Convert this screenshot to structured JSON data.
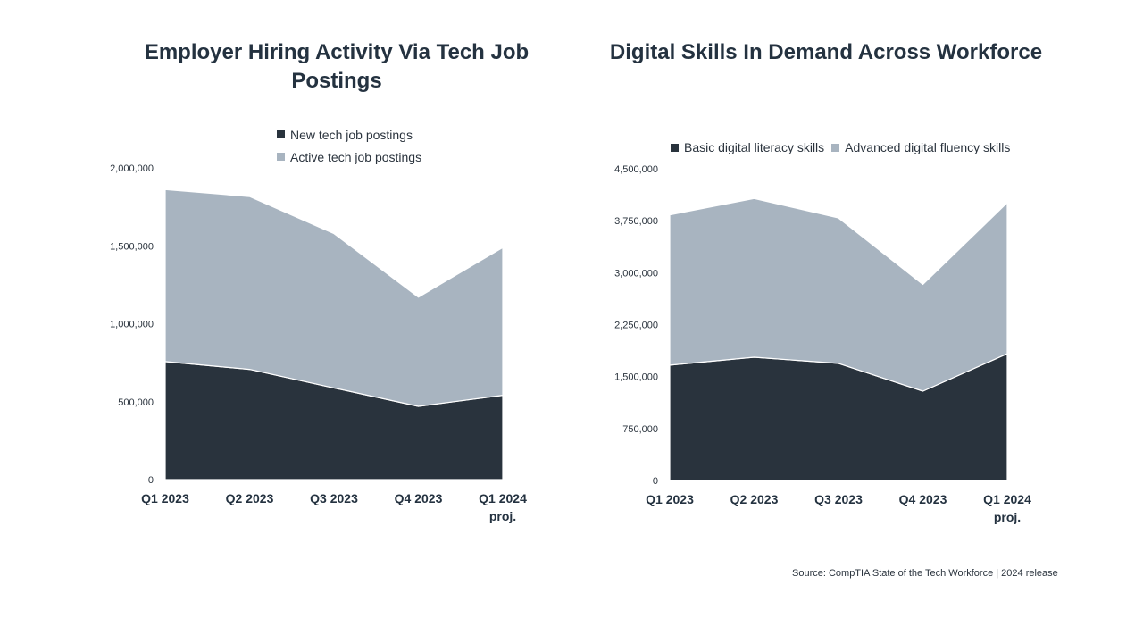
{
  "colors": {
    "dark": "#29333d",
    "light": "#a8b4c0",
    "title": "#243240",
    "text": "#2a333d"
  },
  "chart_data": [
    {
      "type": "area",
      "stacked": true,
      "title": "Employer Hiring Activity Via Tech Job Postings",
      "categories": [
        "Q1 2023",
        "Q2 2023",
        "Q3 2023",
        "Q4 2023",
        "Q1 2024"
      ],
      "category_sublabels": [
        "",
        "",
        "",
        "",
        "proj."
      ],
      "series": [
        {
          "name": "New tech job postings",
          "color": "#29333d",
          "values": [
            757000,
            707000,
            588000,
            470000,
            541000
          ]
        },
        {
          "name": "Active tech job postings",
          "color": "#a8b4c0",
          "values": [
            1104000,
            1109000,
            990000,
            700000,
            948000
          ]
        }
      ],
      "ylim": [
        0,
        2000000
      ],
      "yticks": [
        0,
        500000,
        1000000,
        1500000,
        2000000
      ],
      "ytick_labels": [
        "0",
        "500,000",
        "1,000,000",
        "1,500,000",
        "2,000,000"
      ],
      "legend_position": "top"
    },
    {
      "type": "area",
      "stacked": true,
      "title": "Digital Skills In Demand Across Workforce",
      "categories": [
        "Q1 2023",
        "Q2 2023",
        "Q3 2023",
        "Q4 2023",
        "Q1 2024"
      ],
      "category_sublabels": [
        "",
        "",
        "",
        "",
        "proj."
      ],
      "series": [
        {
          "name": "Basic digital literacy skills",
          "color": "#29333d",
          "values": [
            1665000,
            1780000,
            1690000,
            1290000,
            1830000
          ]
        },
        {
          "name": "Advanced digital fluency skills",
          "color": "#a8b4c0",
          "values": [
            2170000,
            2290000,
            2100000,
            1540000,
            2180000
          ]
        }
      ],
      "ylim": [
        0,
        4500000
      ],
      "yticks": [
        0,
        750000,
        1500000,
        2250000,
        3000000,
        3750000,
        4500000
      ],
      "ytick_labels": [
        "0",
        "750,000",
        "1,500,000",
        "2,250,000",
        "3,000,000",
        "3,750,000",
        "4,500,000"
      ],
      "legend_position": "top"
    }
  ],
  "source": "Source: CompTIA State of the Tech Workforce | 2024 release"
}
